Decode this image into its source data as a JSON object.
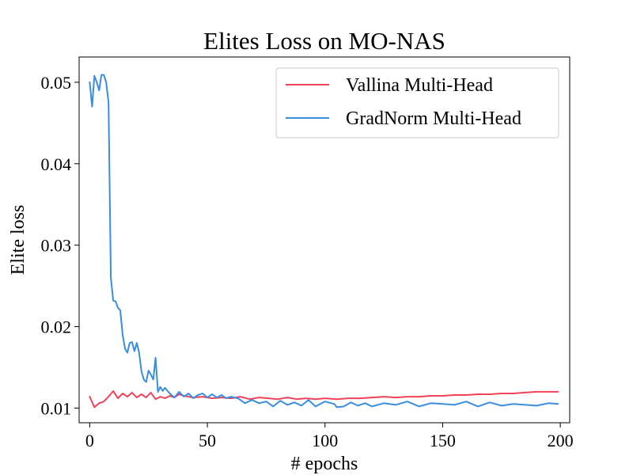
{
  "chart_data": {
    "type": "line",
    "title": "Elites Loss on MO-NAS",
    "xlabel": "# epochs",
    "ylabel": "Elite loss",
    "xlim": [
      -4.5,
      204
    ],
    "ylim": [
      0.0082,
      0.0531
    ],
    "xticks": [
      0,
      50,
      100,
      150,
      200
    ],
    "yticks": [
      0.01,
      0.02,
      0.03,
      0.04,
      0.05
    ],
    "xtick_labels": [
      "0",
      "50",
      "100",
      "150",
      "200"
    ],
    "ytick_labels": [
      "0.01",
      "0.02",
      "0.03",
      "0.04",
      "0.05"
    ],
    "grid": false,
    "legend_position": "top-right",
    "series": [
      {
        "name": "Vallina Multi-Head",
        "color": "#f0435a",
        "x": [
          0,
          2,
          4,
          6,
          8,
          10,
          12,
          14,
          16,
          18,
          20,
          22,
          24,
          26,
          28,
          30,
          32,
          34,
          36,
          38,
          40,
          44,
          48,
          52,
          56,
          60,
          64,
          68,
          72,
          76,
          80,
          84,
          88,
          92,
          96,
          100,
          105,
          110,
          115,
          120,
          125,
          130,
          135,
          140,
          145,
          150,
          155,
          160,
          165,
          170,
          175,
          180,
          185,
          190,
          195,
          199
        ],
        "values": [
          0.0114,
          0.0101,
          0.0106,
          0.0108,
          0.0114,
          0.0121,
          0.0112,
          0.0118,
          0.0114,
          0.0119,
          0.0113,
          0.0117,
          0.0113,
          0.0119,
          0.0111,
          0.0114,
          0.0112,
          0.0115,
          0.0113,
          0.0117,
          0.0115,
          0.0113,
          0.0114,
          0.0112,
          0.0113,
          0.0112,
          0.0114,
          0.0111,
          0.0113,
          0.0112,
          0.0111,
          0.0113,
          0.0111,
          0.0112,
          0.0111,
          0.0112,
          0.0111,
          0.0112,
          0.0112,
          0.0113,
          0.0114,
          0.0113,
          0.0114,
          0.0114,
          0.0115,
          0.0115,
          0.0116,
          0.0116,
          0.0117,
          0.0117,
          0.0118,
          0.0118,
          0.0119,
          0.012,
          0.012,
          0.012
        ]
      },
      {
        "name": "GradNorm Multi-Head",
        "color": "#3a8ee0",
        "x": [
          0,
          1,
          2,
          3,
          4,
          5,
          6,
          7,
          8,
          9,
          10,
          11,
          12,
          13,
          14,
          15,
          16,
          17,
          18,
          19,
          20,
          21,
          22,
          23,
          24,
          25,
          26,
          27,
          28,
          29,
          30,
          31,
          32,
          34,
          36,
          38,
          40,
          42,
          44,
          46,
          48,
          50,
          52,
          54,
          56,
          58,
          60,
          63,
          66,
          69,
          72,
          75,
          78,
          81,
          84,
          87,
          90,
          93,
          96,
          100,
          104,
          105,
          108,
          111,
          114,
          117,
          120,
          125,
          130,
          135,
          140,
          145,
          150,
          155,
          160,
          165,
          170,
          175,
          180,
          185,
          190,
          195,
          199
        ],
        "values": [
          0.05,
          0.047,
          0.0508,
          0.05,
          0.049,
          0.0509,
          0.0509,
          0.05,
          0.0475,
          0.026,
          0.0232,
          0.0231,
          0.0223,
          0.022,
          0.019,
          0.0173,
          0.0168,
          0.018,
          0.0181,
          0.017,
          0.018,
          0.0168,
          0.0145,
          0.0135,
          0.0132,
          0.0146,
          0.0141,
          0.0135,
          0.0162,
          0.012,
          0.0126,
          0.0121,
          0.0125,
          0.0118,
          0.0113,
          0.012,
          0.0114,
          0.0118,
          0.0112,
          0.0116,
          0.0118,
          0.0113,
          0.0117,
          0.0113,
          0.0116,
          0.0112,
          0.0114,
          0.0112,
          0.0106,
          0.011,
          0.0106,
          0.0108,
          0.0102,
          0.0109,
          0.0104,
          0.0107,
          0.0103,
          0.011,
          0.0102,
          0.0108,
          0.0105,
          0.0101,
          0.0102,
          0.0107,
          0.0103,
          0.0106,
          0.0102,
          0.0106,
          0.0104,
          0.0108,
          0.0102,
          0.0106,
          0.0105,
          0.0104,
          0.0108,
          0.0102,
          0.0107,
          0.0103,
          0.0105,
          0.0104,
          0.0103,
          0.0106,
          0.0105
        ]
      }
    ]
  }
}
